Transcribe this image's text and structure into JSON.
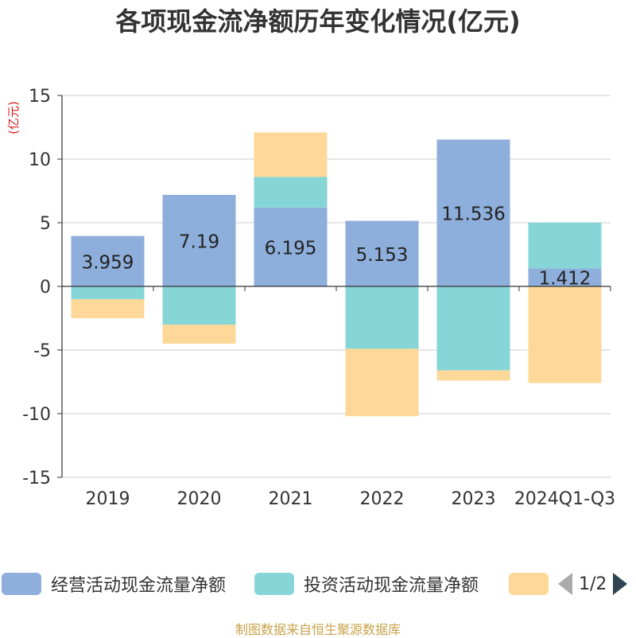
{
  "colors": {
    "operating": "#8eaedb",
    "investing": "#86d5d7",
    "financing": "#fed898",
    "axis": "#333333",
    "grid": "#cccccc",
    "unit": "#d61f1f",
    "source": "#c8a24a"
  },
  "pager": {
    "text": "1/2",
    "prev_icon": "triangle-left-icon",
    "next_icon": "triangle-right-icon"
  },
  "source_text": "制图数据来自恒生聚源数据库",
  "chart_data": {
    "type": "bar",
    "stacked": true,
    "title": "各项现金流净额历年变化情况(亿元)",
    "ylabel": "(亿元)",
    "xlabel": "",
    "ylim": [
      -15,
      15
    ],
    "yticks": [
      15,
      10,
      5,
      0,
      -5,
      -10,
      -15
    ],
    "grid": true,
    "categories": [
      "2019",
      "2020",
      "2021",
      "2022",
      "2023",
      "2024Q1-Q3"
    ],
    "series": [
      {
        "name": "经营活动现金流量净额",
        "color": "#8eaedb",
        "values": [
          3.959,
          7.19,
          6.195,
          5.153,
          11.536,
          1.412
        ],
        "labels": [
          "3.959",
          "7.19",
          "6.195",
          "5.153",
          "11.536",
          "1.412"
        ]
      },
      {
        "name": "投资活动现金流量净额",
        "color": "#86d5d7",
        "values": [
          -1.0,
          -3.0,
          2.4,
          -4.9,
          -6.6,
          3.6
        ]
      },
      {
        "name": "",
        "color": "#fed898",
        "values": [
          -1.5,
          -1.5,
          3.5,
          -5.3,
          -0.8,
          -7.6
        ]
      }
    ]
  }
}
